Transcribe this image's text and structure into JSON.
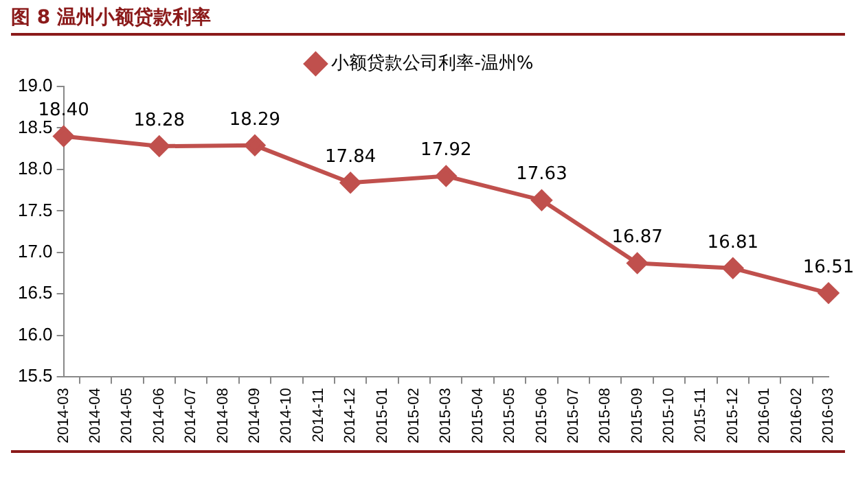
{
  "chart_data": {
    "type": "line",
    "title": "图 8 温州小额贷款利率",
    "categories": [
      "2014-03",
      "2014-04",
      "2014-05",
      "2014-06",
      "2014-07",
      "2014-08",
      "2014-09",
      "2014-10",
      "2014-11",
      "2014-12",
      "2015-01",
      "2015-02",
      "2015-03",
      "2015-04",
      "2015-05",
      "2015-06",
      "2015-07",
      "2015-08",
      "2015-09",
      "2015-10",
      "2015-11",
      "2015-12",
      "2016-01",
      "2016-02",
      "2016-03"
    ],
    "series": [
      {
        "name": "小额贷款公司利率-温州%",
        "color": "#c0504d",
        "values": [
          18.4,
          null,
          null,
          18.28,
          null,
          null,
          18.29,
          null,
          null,
          17.84,
          null,
          null,
          17.92,
          null,
          null,
          17.63,
          null,
          null,
          16.87,
          null,
          null,
          16.81,
          null,
          null,
          16.51
        ],
        "value_labels": [
          "18.40",
          null,
          null,
          "18.28",
          null,
          null,
          "18.29",
          null,
          null,
          "17.84",
          null,
          null,
          "17.92",
          null,
          null,
          "17.63",
          null,
          null,
          "16.87",
          null,
          null,
          "16.81",
          null,
          null,
          "16.51"
        ]
      }
    ],
    "ylim": [
      15.5,
      19.0
    ],
    "yticks": [
      15.5,
      {
        "value": 16,
        "label": "16.0"
      },
      16.5,
      {
        "value": 17,
        "label": "17.0"
      },
      17.5,
      {
        "value": 18,
        "label": "18.0"
      },
      18.5,
      {
        "value": 19,
        "label": "19.0"
      }
    ],
    "legend": "top",
    "marker": "diamond",
    "line_style": "solid"
  }
}
